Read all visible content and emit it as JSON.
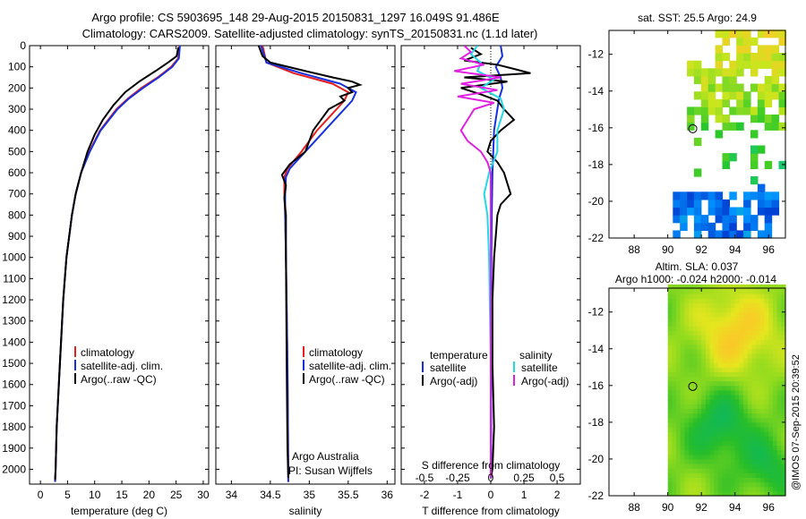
{
  "header": {
    "line1": "Argo profile: CS 5903695_148 29-Aug-2015 20150831_1297 16.049S 91.486E",
    "line2": "Climatology: CARS2009. Satellite-adjusted climatology: synTS_20150831.nc (1.1d later)"
  },
  "side_note": "@IMOS 07-Sep-2015 20:39:52",
  "colors": {
    "climatology": "#e81e1e",
    "satellite": "#1530e0",
    "argo": "#000000",
    "sal_satellite": "#22d8e8",
    "sal_argo": "#e020e0"
  },
  "chart_data": [
    {
      "id": "temperature",
      "type": "line",
      "xlabel": "temperature (deg C)",
      "ylabel": "",
      "xlim": [
        -2,
        31
      ],
      "ylim": [
        2070,
        0
      ],
      "xticks": [
        0,
        5,
        10,
        15,
        20,
        25,
        30
      ],
      "yticks": [
        0,
        100,
        200,
        300,
        400,
        500,
        600,
        700,
        800,
        900,
        1000,
        1100,
        1200,
        1300,
        1400,
        1500,
        1600,
        1700,
        1800,
        1900,
        2000
      ],
      "legend": {
        "entries": [
          "climatology",
          "satellite-adj. clim.",
          "Argo(..raw -QC)"
        ],
        "position": "lower-middle"
      },
      "series": [
        {
          "name": "climatology",
          "color": "#e81e1e",
          "depth": [
            0,
            60,
            100,
            150,
            200,
            250,
            300,
            400,
            500,
            600,
            700,
            800,
            1000,
            1200,
            1500,
            1800,
            2000,
            2060
          ],
          "values": [
            25.6,
            25.4,
            24.1,
            21.6,
            18.6,
            16.1,
            14.0,
            11.0,
            9.0,
            7.5,
            6.5,
            5.8,
            4.8,
            4.2,
            3.6,
            3.0,
            2.8,
            2.7
          ]
        },
        {
          "name": "satellite-adj. clim.",
          "color": "#1530e0",
          "depth": [
            0,
            60,
            100,
            150,
            200,
            250,
            300,
            400,
            500,
            600,
            700,
            800,
            1000,
            1200,
            1500,
            1800,
            2000,
            2060
          ],
          "values": [
            25.7,
            25.5,
            24.3,
            21.8,
            18.9,
            16.3,
            14.2,
            11.1,
            9.1,
            7.5,
            6.5,
            5.8,
            4.8,
            4.2,
            3.6,
            3.0,
            2.8,
            2.7
          ]
        },
        {
          "name": "Argo(..raw -QC)",
          "color": "#000000",
          "depth": [
            8,
            50,
            80,
            120,
            170,
            220,
            280,
            350,
            420,
            500,
            600,
            700,
            800,
            1000,
            1200,
            1500,
            1800,
            2000,
            2050
          ],
          "values": [
            25.4,
            25.1,
            23.5,
            21.2,
            18.2,
            15.6,
            13.5,
            11.5,
            10.0,
            8.7,
            7.5,
            6.5,
            5.8,
            4.8,
            4.2,
            3.6,
            3.0,
            2.8,
            2.7
          ]
        }
      ]
    },
    {
      "id": "salinity",
      "type": "line",
      "xlabel": "salinity",
      "ylabel": "",
      "xlim": [
        33.8,
        36.1
      ],
      "ylim": [
        2070,
        0
      ],
      "xticks": [
        34,
        34.5,
        35,
        35.5,
        36
      ],
      "legend": {
        "entries": [
          "climatology",
          "satellite-adj. clim.",
          "Argo(..raw -QC)"
        ],
        "position": "lower-right"
      },
      "annotations": [
        "Argo Australia",
        "PI: Susan Wijffels"
      ],
      "series": [
        {
          "name": "climatology",
          "color": "#e81e1e",
          "depth": [
            0,
            80,
            130,
            180,
            220,
            260,
            300,
            400,
            500,
            580,
            620,
            700,
            800,
            1000,
            1500,
            2000,
            2060
          ],
          "values": [
            34.4,
            34.45,
            34.8,
            35.3,
            35.5,
            35.45,
            35.35,
            35.1,
            34.9,
            34.72,
            34.68,
            34.68,
            34.69,
            34.7,
            34.72,
            34.73,
            34.73
          ]
        },
        {
          "name": "satellite-adj. clim.",
          "color": "#1530e0",
          "depth": [
            0,
            80,
            130,
            180,
            220,
            260,
            300,
            400,
            500,
            580,
            620,
            700,
            800,
            1000,
            1500,
            2000,
            2060
          ],
          "values": [
            34.38,
            34.45,
            34.9,
            35.4,
            35.6,
            35.55,
            35.45,
            35.2,
            34.95,
            34.75,
            34.7,
            34.69,
            34.69,
            34.7,
            34.72,
            34.73,
            34.73
          ]
        },
        {
          "name": "Argo(..raw -QC)",
          "color": "#000000",
          "depth": [
            0,
            50,
            80,
            120,
            150,
            170,
            185,
            200,
            220,
            240,
            260,
            280,
            300,
            400,
            500,
            560,
            610,
            660,
            720,
            800,
            1000,
            1500,
            1900,
            2040
          ],
          "values": [
            34.35,
            34.4,
            34.5,
            34.95,
            35.3,
            35.55,
            35.65,
            35.5,
            35.55,
            35.4,
            35.45,
            35.35,
            35.25,
            35.05,
            34.95,
            34.75,
            34.65,
            34.7,
            34.68,
            34.7,
            34.7,
            34.71,
            34.72,
            34.73
          ]
        }
      ]
    },
    {
      "id": "difference",
      "type": "line",
      "xlabel": "T difference from climatology",
      "title_bottom": "S difference from climatology",
      "xlim": [
        -2.7,
        2.7
      ],
      "ylim": [
        2070,
        0
      ],
      "xticks": [
        -2,
        -1,
        0,
        1,
        2
      ],
      "s_ticks": [
        {
          "label": "-0.5",
          "x": -2
        },
        {
          "label": "-0.25",
          "x": -1
        },
        {
          "label": "0",
          "x": 0
        },
        {
          "label": "0.25",
          "x": 1
        },
        {
          "label": "0.5",
          "x": 2
        }
      ],
      "legend": {
        "temperature_header": "temperature",
        "salinity_header": "salinity",
        "temperature_entries": [
          "satellite",
          "Argo(-adj)"
        ],
        "salinity_entries": [
          "satellite",
          "Argo(-adj)"
        ]
      },
      "series": [
        {
          "name": "temperature satellite",
          "color": "#1530e0",
          "depth": [
            0,
            50,
            100,
            150,
            200,
            250,
            300,
            400,
            600,
            800,
            1000,
            1500,
            2000,
            2040
          ],
          "values": [
            0.3,
            0.35,
            0.15,
            0.3,
            0.35,
            0.25,
            0.2,
            0.1,
            0.05,
            0.03,
            0.02,
            0.01,
            0.01,
            0.01
          ]
        },
        {
          "name": "temperature Argo(-adj)",
          "color": "#000000",
          "depth": [
            10,
            40,
            70,
            90,
            110,
            130,
            150,
            170,
            200,
            230,
            260,
            300,
            350,
            400,
            450,
            500,
            550,
            600,
            650,
            700,
            750,
            800,
            900,
            1000,
            1200,
            1500,
            1800,
            2000,
            2040
          ],
          "values": [
            -0.6,
            -0.3,
            -0.8,
            0.2,
            0.7,
            1.2,
            -0.8,
            0.5,
            -0.9,
            -0.3,
            0.2,
            0.4,
            0.7,
            0.3,
            0.0,
            -0.1,
            0.2,
            0.4,
            0.5,
            0.6,
            0.3,
            0.2,
            0.15,
            0.1,
            0.05,
            0.05,
            0.1,
            0.05,
            0.0
          ]
        },
        {
          "name": "salinity satellite",
          "color": "#22d8e8",
          "depth": [
            0,
            40,
            80,
            120,
            160,
            200,
            250,
            300,
            400,
            500,
            600,
            700,
            800,
            1000,
            1500,
            2000,
            2040
          ],
          "values": [
            -0.4,
            -0.6,
            -0.3,
            -0.4,
            0.1,
            -0.3,
            0.3,
            0.4,
            0.2,
            0.2,
            -0.05,
            -0.2,
            -0.1,
            -0.05,
            0.0,
            0.0,
            0.0
          ]
        },
        {
          "name": "salinity Argo(-adj)",
          "color": "#e020e0",
          "depth": [
            0,
            30,
            60,
            90,
            120,
            150,
            180,
            210,
            240,
            270,
            300,
            350,
            400,
            450,
            500,
            550,
            600,
            650,
            700,
            800,
            1000,
            1500,
            2000,
            2040
          ],
          "values": [
            -0.8,
            -0.6,
            -0.9,
            -0.2,
            -1.1,
            0.3,
            -0.9,
            0.2,
            -1.0,
            0.1,
            -0.5,
            -0.7,
            -0.9,
            -0.7,
            -0.3,
            -0.1,
            0.0,
            0.0,
            0.0,
            0.0,
            0.0,
            0.0,
            0.0,
            0.0
          ]
        }
      ]
    },
    {
      "id": "sst_map",
      "type": "heatmap",
      "title": "sat. SST: 25.5  Argo: 24.9",
      "xlim": [
        86.5,
        97
      ],
      "ylim": [
        -22,
        -10.7
      ],
      "xticks": [
        88,
        90,
        92,
        94,
        96
      ],
      "yticks": [
        -12,
        -14,
        -16,
        -18,
        -20,
        -22
      ],
      "marker": {
        "lon": 91.486,
        "lat": -16.049
      }
    },
    {
      "id": "sla_map",
      "type": "heatmap",
      "title": "Altim. SLA: 0.037",
      "subtitle": "Argo h1000: -0.024 h2000: -0.014",
      "xlim": [
        86.5,
        97
      ],
      "ylim": [
        -22,
        -10.7
      ],
      "xticks": [
        88,
        90,
        92,
        94,
        96
      ],
      "yticks": [
        -12,
        -14,
        -16,
        -18,
        -20,
        -22
      ],
      "marker": {
        "lon": 91.486,
        "lat": -16.049
      }
    }
  ]
}
